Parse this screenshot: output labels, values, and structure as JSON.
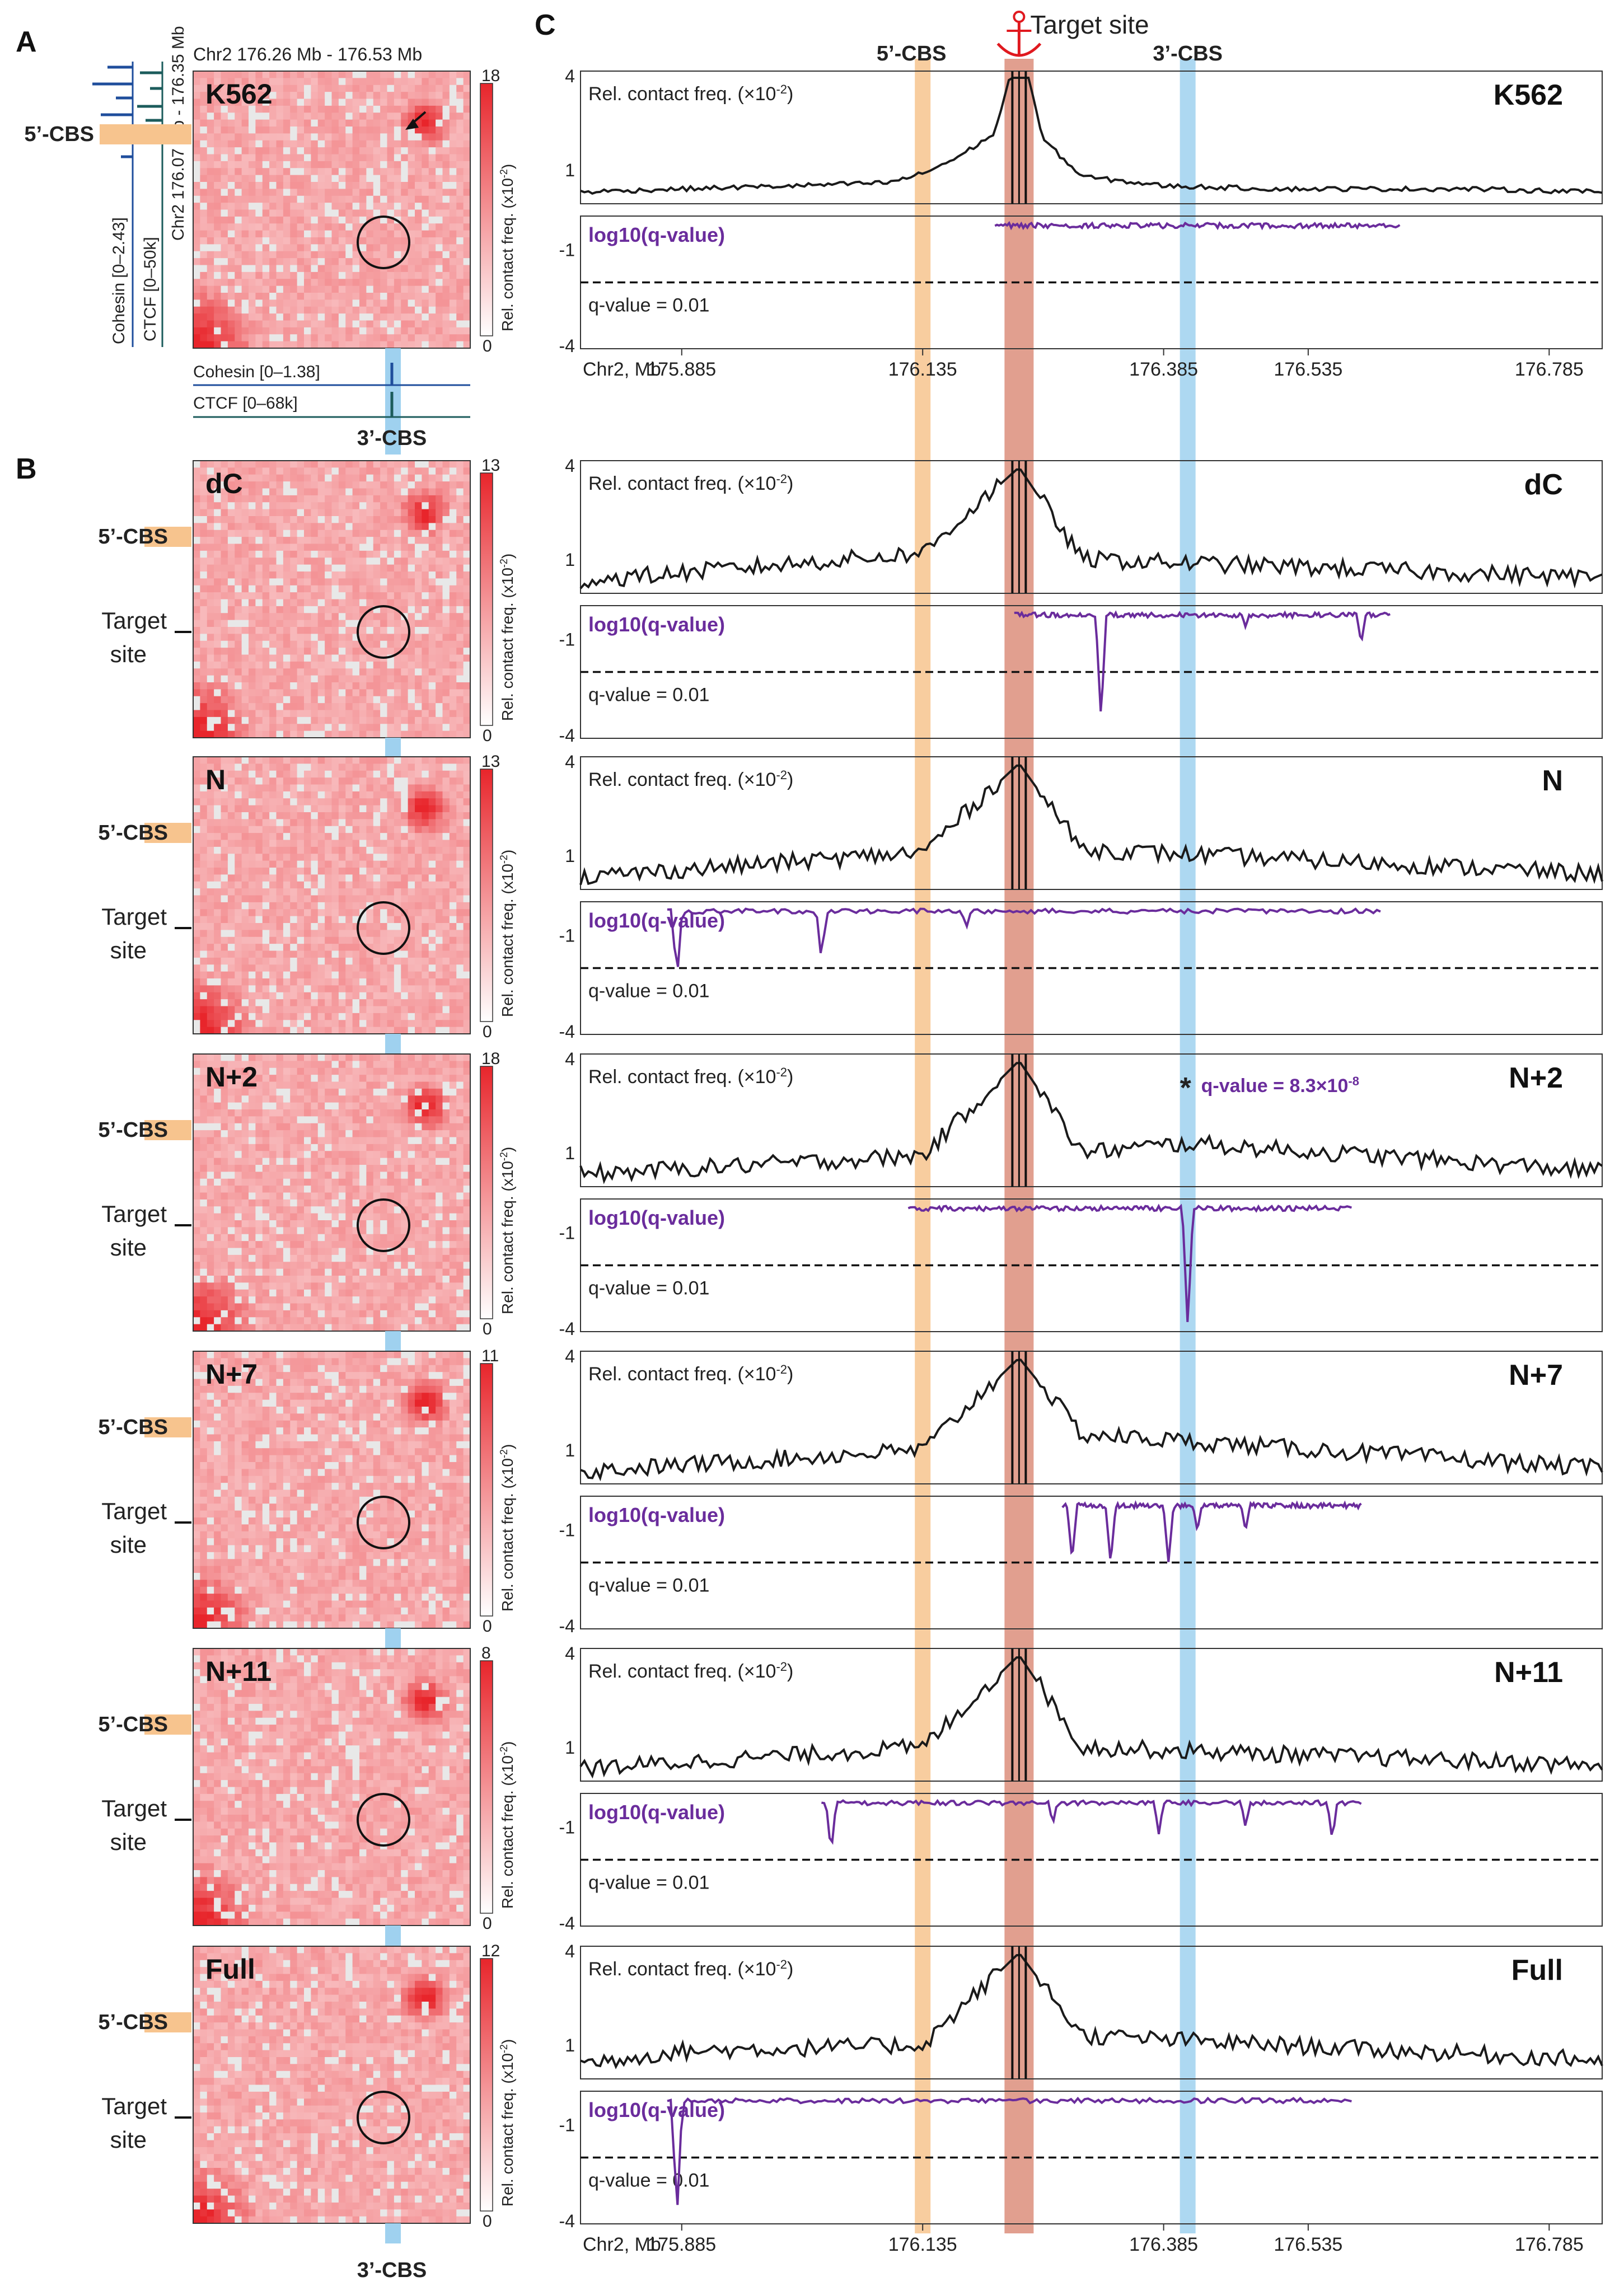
{
  "panel_letters": {
    "a": "A",
    "b": "B",
    "c": "C"
  },
  "panel_a": {
    "x_range_label": "Chr2 176.26 Mb - 176.53 Mb",
    "y_range_label": "Chr2 176.07 Mb - 176.35 Mb",
    "cohesin_left_label": "Cohesin [0–2.43]",
    "ctcf_left_label": "CTCF [0–50k]",
    "cohesin_bottom_label": "Cohesin [0–1.38]",
    "ctcf_bottom_label": "CTCF [0–68k]",
    "five_cbs": "5’-CBS",
    "three_cbs": "3’-CBS"
  },
  "colorbar_label": "Rel. contact freq. (x10",
  "colorbar_exp": "-2",
  "colorbar_close": ")",
  "row_labels": {
    "five_cbs": "5’-CBS",
    "target_line1": "Target",
    "target_line2": "site",
    "three_cbs": "3’-CBS"
  },
  "colors": {
    "orange_band": "#f7c48e",
    "blue_band": "#9fd1ef",
    "target_band": "#d77f6a",
    "qline": "#6a2c9c",
    "heat": "#e8252b",
    "signal": "#1a1a1a"
  },
  "panel_c": {
    "target_site_label": "Target site",
    "five_cbs": "5’-CBS",
    "three_cbs": "3’-CBS",
    "contact_label": "Rel. contact freq. (×10",
    "contact_exp": "-2",
    "contact_close": ")",
    "qval_label": "log10(q-value)",
    "threshold_label": "q-value = 0.01",
    "asterisk": "*",
    "annotation": "q-value = 8.3×10",
    "annotation_exp": "-8",
    "xaxis_label": "Chr2, Mb",
    "xticks": [
      "175.885",
      "176.135",
      "176.385",
      "176.535",
      "176.785"
    ],
    "yticks_top": [
      "4",
      "1"
    ],
    "yticks_bottom": [
      "-1",
      "-4"
    ],
    "xtick_values": [
      175.885,
      176.135,
      176.385,
      176.535,
      176.785
    ],
    "x_domain": [
      175.78,
      176.84
    ],
    "y_top_max": 4,
    "y_bottom_min": -4,
    "threshold_value": -2.0,
    "cbs5_position": 176.135,
    "cbs3_position": 176.41,
    "target_position": 176.235
  },
  "chart_data": [
    {
      "type": "heatmap",
      "sample": "K562",
      "colorbar_max": "18",
      "colorbar_min": "0"
    },
    {
      "type": "heatmap",
      "sample": "dC",
      "colorbar_max": "13",
      "colorbar_min": "0"
    },
    {
      "type": "heatmap",
      "sample": "N",
      "colorbar_max": "13",
      "colorbar_min": "0"
    },
    {
      "type": "heatmap",
      "sample": "N+2",
      "colorbar_max": "18",
      "colorbar_min": "0"
    },
    {
      "type": "heatmap",
      "sample": "N+7",
      "colorbar_max": "11",
      "colorbar_min": "0"
    },
    {
      "type": "heatmap",
      "sample": "N+11",
      "colorbar_max": "8",
      "colorbar_min": "0"
    },
    {
      "type": "heatmap",
      "sample": "Full",
      "colorbar_max": "12",
      "colorbar_min": "0"
    },
    {
      "type": "line",
      "sample": "K562",
      "series": [
        {
          "x": [
            175.78,
            175.885,
            176.0,
            176.1,
            176.135,
            176.17,
            176.21,
            176.225,
            176.235,
            176.245,
            176.26,
            176.3,
            176.385,
            176.5,
            176.6,
            176.7,
            176.84
          ],
          "values": [
            0.3,
            0.4,
            0.5,
            0.6,
            0.9,
            1.4,
            2.2,
            4.0,
            4.0,
            4.0,
            2.0,
            0.8,
            0.5,
            0.4,
            0.4,
            0.4,
            0.3
          ]
        },
        {
          "x": [
            176.22,
            176.26,
            176.385,
            176.52,
            176.6
          ],
          "values": [
            -0.2,
            -0.3,
            -0.35,
            -0.35,
            -0.2
          ]
        }
      ]
    },
    {
      "type": "line",
      "sample": "dC",
      "series": [
        {
          "x": [
            175.78,
            176.135,
            176.235,
            176.3,
            176.84
          ],
          "values": [
            0.3,
            1.2,
            4.0,
            1.0,
            0.4
          ]
        },
        {
          "x": [
            176.24,
            176.32,
            176.395,
            176.47,
            176.59
          ],
          "values": [
            -0.1,
            -3.4,
            -0.1,
            -0.6,
            -1.1
          ]
        }
      ]
    },
    {
      "type": "line",
      "sample": "N",
      "series": [
        {
          "x": [
            175.78,
            176.135,
            176.235,
            176.3,
            176.84
          ],
          "values": [
            0.3,
            1.1,
            4.0,
            1.2,
            0.4
          ]
        },
        {
          "x": [
            175.88,
            176.03,
            176.18,
            176.4,
            176.58
          ],
          "values": [
            -2.4,
            -1.8,
            -0.8,
            -0.3,
            -0.2
          ]
        }
      ]
    },
    {
      "type": "line",
      "sample": "N+2",
      "series": [
        {
          "x": [
            175.78,
            176.135,
            176.235,
            176.3,
            176.41,
            176.84
          ],
          "values": [
            0.3,
            0.9,
            4.0,
            1.0,
            1.3,
            0.4
          ]
        },
        {
          "x": [
            176.13,
            176.25,
            176.41,
            176.55
          ],
          "values": [
            -0.3,
            -0.3,
            -3.9,
            -0.2
          ]
        }
      ]
    },
    {
      "type": "line",
      "sample": "N+7",
      "series": [
        {
          "x": [
            175.78,
            176.135,
            176.235,
            176.3,
            176.84
          ],
          "values": [
            0.3,
            1.0,
            4.0,
            1.5,
            0.4
          ]
        },
        {
          "x": [
            176.29,
            176.33,
            176.39,
            176.42,
            176.47,
            176.56
          ],
          "values": [
            -1.9,
            -2.0,
            -2.0,
            -1.0,
            -1.0,
            -0.2
          ]
        }
      ]
    },
    {
      "type": "line",
      "sample": "N+11",
      "series": [
        {
          "x": [
            175.78,
            176.135,
            176.235,
            176.3,
            176.84
          ],
          "values": [
            0.3,
            1.0,
            4.0,
            1.0,
            0.4
          ]
        },
        {
          "x": [
            176.04,
            176.27,
            176.38,
            176.47,
            176.56
          ],
          "values": [
            -1.8,
            -0.9,
            -1.2,
            -1.0,
            -1.4
          ]
        }
      ]
    },
    {
      "type": "line",
      "sample": "Full",
      "series": [
        {
          "x": [
            175.78,
            175.885,
            176.135,
            176.235,
            176.3,
            176.84
          ],
          "values": [
            0.4,
            0.8,
            1.0,
            4.0,
            1.3,
            0.5
          ]
        },
        {
          "x": [
            175.88,
            176.0,
            176.3,
            176.4,
            176.55
          ],
          "values": [
            -3.9,
            -0.1,
            -0.3,
            -0.3,
            -0.2
          ]
        }
      ]
    }
  ]
}
